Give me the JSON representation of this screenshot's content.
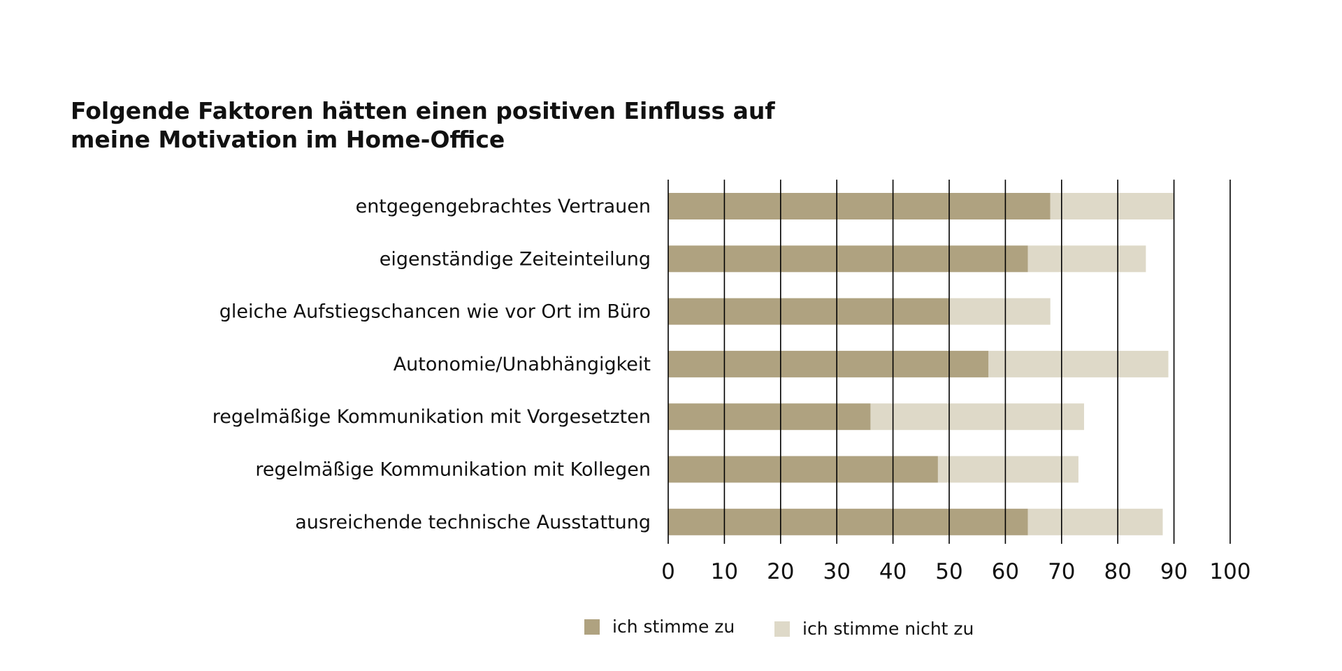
{
  "chart_data": {
    "type": "bar",
    "orientation": "horizontal",
    "stacked": true,
    "title": "Folgende Faktoren hätten einen positiven Einfluss auf meine Motivation im Home-Office",
    "title_lines": [
      "Folgende Faktoren hätten einen positiven Einfluss auf",
      "meine Motivation im Home-Office"
    ],
    "categories": [
      "entgegengebrachtes Vertrauen",
      "eigenständige Zeiteinteilung",
      "gleiche Aufstiegschancen wie vor Ort im Büro",
      "Autonomie/Unabhängigkeit",
      "regelmäßige Kommunikation mit Vorgesetzten",
      "regelmäßige Kommunikation mit Kollegen",
      "ausreichende technische Ausstattung"
    ],
    "series": [
      {
        "name": "ich stimme zu",
        "color": "#afa280",
        "values": [
          68,
          64,
          50,
          57,
          36,
          48,
          64
        ]
      },
      {
        "name": "ich stimme nicht zu",
        "color": "#ded9c8",
        "values": [
          22,
          21,
          18,
          32,
          38,
          25,
          24
        ]
      }
    ],
    "xlim": [
      0,
      100
    ],
    "xticks": [
      "0",
      "10",
      "20",
      "30",
      "40",
      "50",
      "60",
      "70",
      "80",
      "90",
      "100"
    ],
    "grid": true,
    "legend_position": "bottom"
  }
}
